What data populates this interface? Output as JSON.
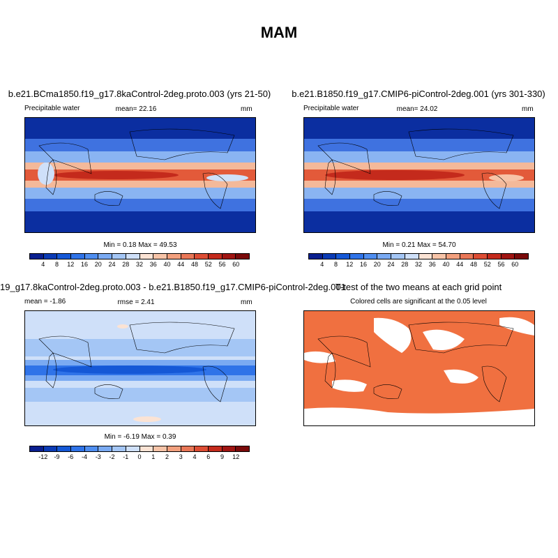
{
  "title": "MAM",
  "panels": {
    "p1": {
      "title": "b.e21.BCma1850.f19_g17.8kaControl-2deg.proto.003 (yrs 21-50)",
      "left_label": "Precipitable water",
      "center_label": "mean=  22.16",
      "right_label": "mm",
      "minmax": "Min =   0.18 Max =  49.53"
    },
    "p2": {
      "title": "b.e21.B1850.f19_g17.CMIP6-piControl-2deg.001 (yrs 301-330)",
      "left_label": "Precipitable water",
      "center_label": "mean=  24.02",
      "right_label": "mm",
      "minmax": "Min =   0.21 Max =  54.70"
    },
    "p3": {
      "title": "19_g17.8kaControl-2deg.proto.003 - b.e21.B1850.f19_g17.CMIP6-piControl-2deg.001",
      "left_label": "mean =  -1.86",
      "center_label": "rmse =   2.41",
      "right_label": "mm",
      "minmax": "Min =  -6.19 Max =   0.39"
    },
    "p4": {
      "title": "T-test of the two means at each grid point",
      "subtitle": "Colored cells are significant at the 0.05 level"
    }
  },
  "colorbars": {
    "absolute": {
      "ticks": [
        "4",
        "8",
        "12",
        "16",
        "20",
        "24",
        "28",
        "32",
        "36",
        "40",
        "44",
        "48",
        "52",
        "56",
        "60"
      ],
      "colors": [
        "#0a1f8f",
        "#0b3bb5",
        "#1558d6",
        "#2f73e8",
        "#4f8ef0",
        "#7aaaf2",
        "#a4c6f5",
        "#cfe0f9",
        "#fbe3d4",
        "#f7c4a8",
        "#f2a07e",
        "#e97757",
        "#dd4d34",
        "#c42a1c",
        "#a01512",
        "#7a0a0a"
      ]
    },
    "difference": {
      "ticks": [
        "-12",
        "-9",
        "-6",
        "-4",
        "-3",
        "-2",
        "-1",
        "0",
        "1",
        "2",
        "3",
        "4",
        "6",
        "9",
        "12"
      ],
      "colors": [
        "#0a1f8f",
        "#0b3bb5",
        "#1558d6",
        "#2f73e8",
        "#4f8ef0",
        "#7aaaf2",
        "#a4c6f5",
        "#cfe0f9",
        "#fbe3d4",
        "#f7c4a8",
        "#f2a07e",
        "#e97757",
        "#dd4d34",
        "#c42a1c",
        "#a01512",
        "#7a0a0a"
      ]
    }
  },
  "ttest_color": "#f07040"
}
